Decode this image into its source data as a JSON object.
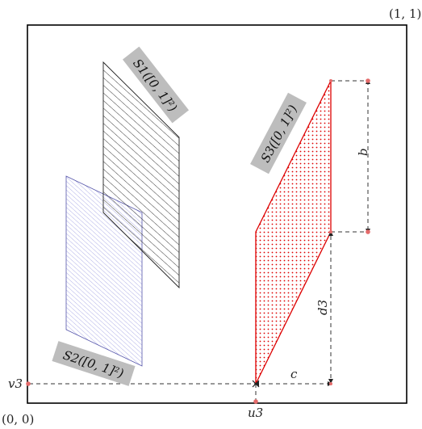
{
  "corner_labels": {
    "top_right": "(1, 1)",
    "bottom_left": "(0, 0)"
  },
  "shape_labels": {
    "s1": "S1([0, 1]²)",
    "s2": "S2([0, 1]²)",
    "s3": "S3([0, 1]²)"
  },
  "dimension_labels": {
    "b": "b",
    "c": "c",
    "d3": "d3"
  },
  "axis_markers": {
    "v3": "v3",
    "u3": "u3"
  },
  "colors": {
    "frame": "#000000",
    "s1_hatch": "#222222",
    "s2_hatch": "#7a7ad8",
    "s3_edge": "#dd0000",
    "s3_dots": "#dd0000",
    "tag_bg": "#bdbdbd",
    "marker": "#e46b6b"
  }
}
